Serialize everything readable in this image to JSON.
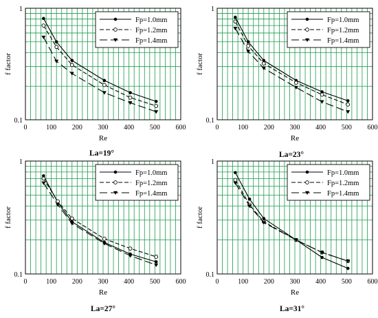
{
  "chart_data": [
    {
      "type": "line",
      "caption": "La=19°",
      "xlabel": "Re",
      "ylabel": "f factor",
      "xlim": [
        0,
        600
      ],
      "ylim": [
        0.1,
        1
      ],
      "y_scale": "log",
      "grid": true,
      "legend_position": "top-right",
      "x_ticks": [
        "0",
        "100",
        "200",
        "300",
        "400",
        "500",
        "600"
      ],
      "y_ticks": [
        "0.1",
        "1"
      ],
      "series": [
        {
          "name": "Fp=1.0mm",
          "marker": "circle-filled",
          "dash": "solid",
          "x": [
            70,
            120,
            180,
            305,
            405,
            505
          ],
          "y": [
            0.81,
            0.5,
            0.34,
            0.225,
            0.175,
            0.146
          ]
        },
        {
          "name": "Fp=1.2mm",
          "marker": "circle-open",
          "dash": "medium",
          "x": [
            70,
            120,
            180,
            305,
            405,
            505
          ],
          "y": [
            0.7,
            0.45,
            0.31,
            0.205,
            0.158,
            0.133
          ]
        },
        {
          "name": "Fp=1.4mm",
          "marker": "triangle-down",
          "dash": "long",
          "x": [
            70,
            120,
            180,
            305,
            405,
            505
          ],
          "y": [
            0.55,
            0.335,
            0.26,
            0.175,
            0.142,
            0.118
          ]
        }
      ]
    },
    {
      "type": "line",
      "caption": "La=23°",
      "xlabel": "Re",
      "ylabel": "f factor",
      "xlim": [
        0,
        600
      ],
      "ylim": [
        0.1,
        1
      ],
      "y_scale": "log",
      "grid": true,
      "legend_position": "top-right",
      "x_ticks": [
        "0",
        "100",
        "200",
        "300",
        "400",
        "500",
        "600"
      ],
      "y_ticks": [
        "0.1",
        "1"
      ],
      "series": [
        {
          "name": "Fp=1.0mm",
          "marker": "circle-filled",
          "dash": "solid",
          "x": [
            70,
            120,
            180,
            305,
            405,
            505
          ],
          "y": [
            0.83,
            0.5,
            0.34,
            0.225,
            0.178,
            0.148
          ]
        },
        {
          "name": "Fp=1.2mm",
          "marker": "circle-open",
          "dash": "medium",
          "x": [
            70,
            120,
            180,
            305,
            405,
            505
          ],
          "y": [
            0.76,
            0.46,
            0.32,
            0.215,
            0.168,
            0.137
          ]
        },
        {
          "name": "Fp=1.4mm",
          "marker": "triangle-down",
          "dash": "long",
          "x": [
            70,
            120,
            180,
            305,
            405,
            505
          ],
          "y": [
            0.66,
            0.41,
            0.29,
            0.195,
            0.145,
            0.118
          ]
        }
      ]
    },
    {
      "type": "line",
      "caption": "La=27°",
      "xlabel": "Re",
      "ylabel": "f factor",
      "xlim": [
        0,
        600
      ],
      "ylim": [
        0.1,
        1
      ],
      "y_scale": "log",
      "grid": true,
      "legend_position": "top-right",
      "x_ticks": [
        "0",
        "100",
        "200",
        "300",
        "400",
        "500",
        "600"
      ],
      "y_ticks": [
        "0.1",
        "1"
      ],
      "series": [
        {
          "name": "Fp=1.0mm",
          "marker": "circle-filled",
          "dash": "solid",
          "x": [
            70,
            125,
            180,
            305,
            405,
            505
          ],
          "y": [
            0.74,
            0.43,
            0.29,
            0.19,
            0.15,
            0.128
          ]
        },
        {
          "name": "Fp=1.2mm",
          "marker": "circle-open",
          "dash": "medium",
          "x": [
            70,
            125,
            180,
            305,
            405,
            505
          ],
          "y": [
            0.7,
            0.44,
            0.31,
            0.205,
            0.168,
            0.142
          ]
        },
        {
          "name": "Fp=1.4mm",
          "marker": "triangle-down",
          "dash": "long",
          "x": [
            70,
            125,
            180,
            305,
            405,
            505
          ],
          "y": [
            0.64,
            0.41,
            0.28,
            0.186,
            0.145,
            0.12
          ]
        }
      ]
    },
    {
      "type": "line",
      "caption": "La=31°",
      "xlabel": "Re",
      "ylabel": "f factor",
      "xlim": [
        0,
        600
      ],
      "ylim": [
        0.1,
        1
      ],
      "y_scale": "log",
      "grid": true,
      "legend_position": "top-right",
      "x_ticks": [
        "0",
        "100",
        "200",
        "300",
        "400",
        "500",
        "600"
      ],
      "y_ticks": [
        "0.1",
        "1"
      ],
      "series": [
        {
          "name": "Fp=1.0mm",
          "marker": "circle-filled",
          "dash": "solid",
          "x": [
            70,
            125,
            180,
            305,
            405,
            505
          ],
          "y": [
            0.79,
            0.46,
            0.31,
            0.2,
            0.14,
            0.112
          ]
        },
        {
          "name": "Fp=1.2mm",
          "marker": "circle-open",
          "dash": "medium",
          "x": [
            70,
            125,
            180,
            305,
            405,
            505
          ],
          "y": [
            0.68,
            0.41,
            0.29,
            0.2,
            0.155,
            0.13
          ]
        },
        {
          "name": "Fp=1.4mm",
          "marker": "triangle-down",
          "dash": "long",
          "x": [
            70,
            125,
            180,
            305,
            405,
            505
          ],
          "y": [
            0.64,
            0.4,
            0.285,
            0.2,
            0.155,
            0.13
          ]
        }
      ]
    }
  ]
}
